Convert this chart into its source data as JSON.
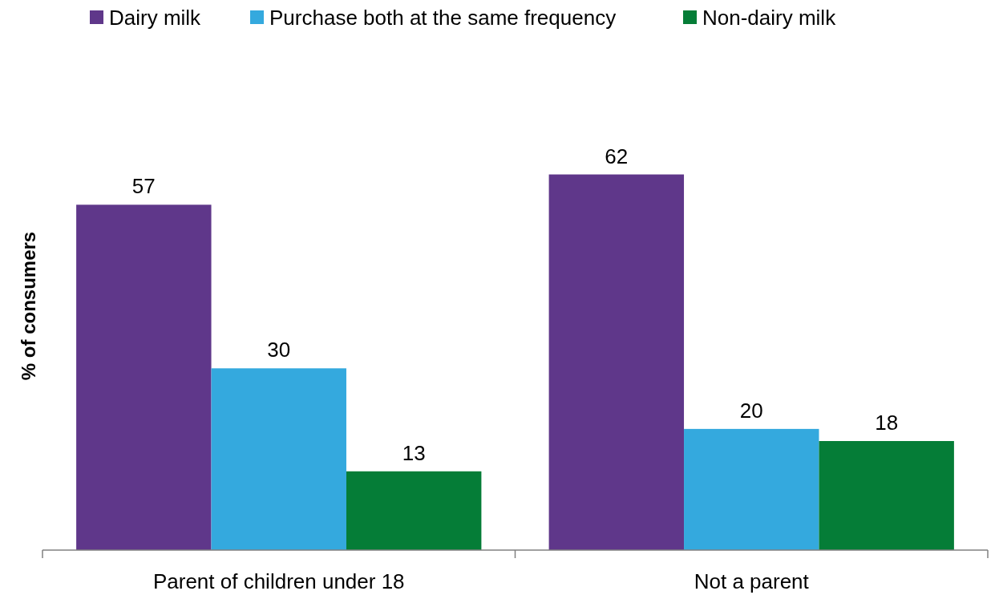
{
  "chart_data": {
    "type": "bar",
    "ylabel": "% of consumers",
    "categories": [
      "Parent of children under 18",
      "Not a parent"
    ],
    "series": [
      {
        "name": "Dairy milk",
        "color": "#5f378a",
        "values": [
          57,
          62
        ]
      },
      {
        "name": "Purchase both at the same frequency",
        "color": "#34a9de",
        "values": [
          30,
          20
        ]
      },
      {
        "name": "Non-dairy milk",
        "color": "#057d37",
        "values": [
          13,
          18
        ]
      }
    ],
    "relative": false,
    "data_labels": true,
    "legend": "top",
    "grid": false
  }
}
